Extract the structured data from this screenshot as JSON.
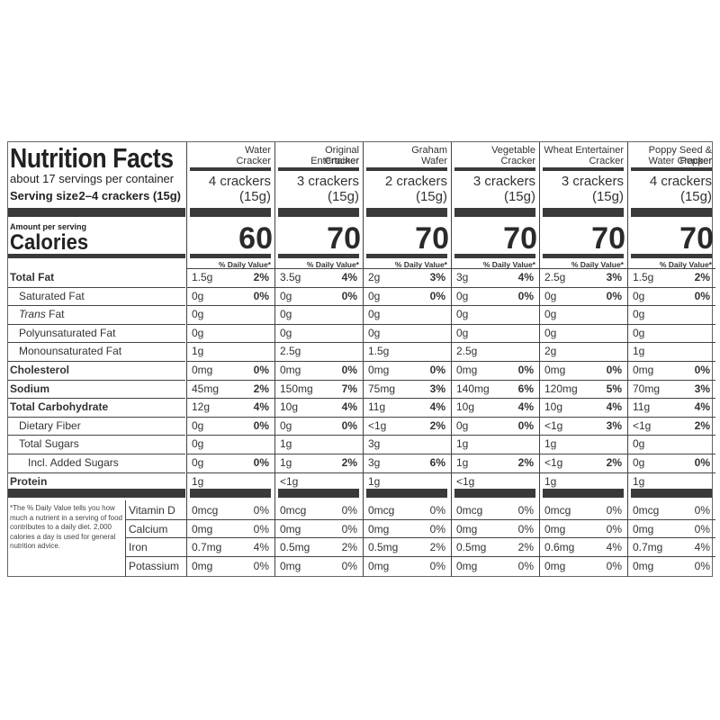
{
  "title": "Nutrition Facts",
  "servings": "about 17 servings per container",
  "serving_size_label": "Serving size",
  "serving_size_value": "2–4 crackers (15g)",
  "amount_per_serving": "Amount per serving",
  "calories_label": "Calories",
  "dv_header": "% Daily Value*",
  "footnote": "*The % Daily Value tells you how much a nutrient in a serving of food contributes to a daily diet. 2,000 calories a day is used for general nutrition advice.",
  "products": [
    {
      "name1": "Water",
      "name2": "Cracker",
      "serv1": "4 crackers",
      "serv2": "(15g)",
      "calories": "60",
      "n": [
        [
          "1.5g",
          "2%"
        ],
        [
          "0g",
          "0%"
        ],
        [
          "0g",
          ""
        ],
        [
          "0g",
          ""
        ],
        [
          "1g",
          ""
        ],
        [
          "0mg",
          "0%"
        ],
        [
          "45mg",
          "2%"
        ],
        [
          "12g",
          "4%"
        ],
        [
          "0g",
          "0%"
        ],
        [
          "0g",
          ""
        ],
        [
          "0g",
          "0%"
        ],
        [
          "1g",
          ""
        ]
      ],
      "v": [
        [
          "0mcg",
          "0%"
        ],
        [
          "0mg",
          "0%"
        ],
        [
          "0.7mg",
          "4%"
        ],
        [
          "0mg",
          "0%"
        ]
      ]
    },
    {
      "name1": "Original Entertainer",
      "name2": "Cracker",
      "serv1": "3 crackers",
      "serv2": "(15g)",
      "calories": "70",
      "n": [
        [
          "3.5g",
          "4%"
        ],
        [
          "0g",
          "0%"
        ],
        [
          "0g",
          ""
        ],
        [
          "0g",
          ""
        ],
        [
          "2.5g",
          ""
        ],
        [
          "0mg",
          "0%"
        ],
        [
          "150mg",
          "7%"
        ],
        [
          "10g",
          "4%"
        ],
        [
          "0g",
          "0%"
        ],
        [
          "1g",
          ""
        ],
        [
          "1g",
          "2%"
        ],
        [
          "<1g",
          ""
        ]
      ],
      "v": [
        [
          "0mcg",
          "0%"
        ],
        [
          "0mg",
          "0%"
        ],
        [
          "0.5mg",
          "2%"
        ],
        [
          "0mg",
          "0%"
        ]
      ]
    },
    {
      "name1": "Graham",
      "name2": "Wafer",
      "serv1": "2 crackers",
      "serv2": "(15g)",
      "calories": "70",
      "n": [
        [
          "2g",
          "3%"
        ],
        [
          "0g",
          "0%"
        ],
        [
          "0g",
          ""
        ],
        [
          "0g",
          ""
        ],
        [
          "1.5g",
          ""
        ],
        [
          "0mg",
          "0%"
        ],
        [
          "75mg",
          "3%"
        ],
        [
          "11g",
          "4%"
        ],
        [
          "<1g",
          "2%"
        ],
        [
          "3g",
          ""
        ],
        [
          "3g",
          "6%"
        ],
        [
          "1g",
          ""
        ]
      ],
      "v": [
        [
          "0mcg",
          "0%"
        ],
        [
          "0mg",
          "0%"
        ],
        [
          "0.5mg",
          "2%"
        ],
        [
          "0mg",
          "0%"
        ]
      ]
    },
    {
      "name1": "Vegetable",
      "name2": "Cracker",
      "serv1": "3 crackers",
      "serv2": "(15g)",
      "calories": "70",
      "n": [
        [
          "3g",
          "4%"
        ],
        [
          "0g",
          "0%"
        ],
        [
          "0g",
          ""
        ],
        [
          "0g",
          ""
        ],
        [
          "2.5g",
          ""
        ],
        [
          "0mg",
          "0%"
        ],
        [
          "140mg",
          "6%"
        ],
        [
          "10g",
          "4%"
        ],
        [
          "0g",
          "0%"
        ],
        [
          "1g",
          ""
        ],
        [
          "1g",
          "2%"
        ],
        [
          "<1g",
          ""
        ]
      ],
      "v": [
        [
          "0mcg",
          "0%"
        ],
        [
          "0mg",
          "0%"
        ],
        [
          "0.5mg",
          "2%"
        ],
        [
          "0mg",
          "0%"
        ]
      ]
    },
    {
      "name1": "Wheat Entertainer",
      "name2": "Cracker",
      "serv1": "3 crackers",
      "serv2": "(15g)",
      "calories": "70",
      "n": [
        [
          "2.5g",
          "3%"
        ],
        [
          "0g",
          "0%"
        ],
        [
          "0g",
          ""
        ],
        [
          "0g",
          ""
        ],
        [
          "2g",
          ""
        ],
        [
          "0mg",
          "0%"
        ],
        [
          "120mg",
          "5%"
        ],
        [
          "10g",
          "4%"
        ],
        [
          "<1g",
          "3%"
        ],
        [
          "1g",
          ""
        ],
        [
          "<1g",
          "2%"
        ],
        [
          "1g",
          ""
        ]
      ],
      "v": [
        [
          "0mcg",
          "0%"
        ],
        [
          "0mg",
          "0%"
        ],
        [
          "0.6mg",
          "4%"
        ],
        [
          "0mg",
          "0%"
        ]
      ]
    },
    {
      "name1": "Poppy Seed & Pepper",
      "name2": "Water Cracker",
      "serv1": "4 crackers",
      "serv2": "(15g)",
      "calories": "70",
      "n": [
        [
          "1.5g",
          "2%"
        ],
        [
          "0g",
          "0%"
        ],
        [
          "0g",
          ""
        ],
        [
          "0g",
          ""
        ],
        [
          "1g",
          ""
        ],
        [
          "0mg",
          "0%"
        ],
        [
          "70mg",
          "3%"
        ],
        [
          "11g",
          "4%"
        ],
        [
          "<1g",
          "2%"
        ],
        [
          "0g",
          ""
        ],
        [
          "0g",
          "0%"
        ],
        [
          "1g",
          ""
        ]
      ],
      "v": [
        [
          "0mcg",
          "0%"
        ],
        [
          "0mg",
          "0%"
        ],
        [
          "0.7mg",
          "4%"
        ],
        [
          "0mg",
          "0%"
        ]
      ]
    }
  ],
  "nutrients": [
    {
      "label": "Total Fat",
      "bold": true,
      "indent": 0
    },
    {
      "label": "Saturated Fat",
      "bold": false,
      "indent": 1
    },
    {
      "label": "Trans Fat",
      "bold": false,
      "indent": 1,
      "italic_prefix": "Trans"
    },
    {
      "label": "Polyunsaturated Fat",
      "bold": false,
      "indent": 1
    },
    {
      "label": "Monounsaturated Fat",
      "bold": false,
      "indent": 1
    },
    {
      "label": "Cholesterol",
      "bold": true,
      "indent": 0
    },
    {
      "label": "Sodium",
      "bold": true,
      "indent": 0
    },
    {
      "label": "Total Carbohydrate",
      "bold": true,
      "indent": 0
    },
    {
      "label": "Dietary Fiber",
      "bold": false,
      "indent": 1
    },
    {
      "label": "Total Sugars",
      "bold": false,
      "indent": 1
    },
    {
      "label": "Incl. Added Sugars",
      "bold": false,
      "indent": 2
    },
    {
      "label": "Protein",
      "bold": true,
      "indent": 0
    }
  ],
  "vitamins": [
    "Vitamin D",
    "Calcium",
    "Iron",
    "Potassium"
  ]
}
